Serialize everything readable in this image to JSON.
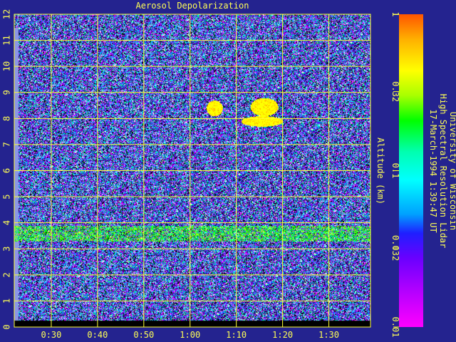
{
  "chart_data": {
    "type": "heatmap",
    "title": "Aerosol Depolarization",
    "ylabel": "Altitude (km)",
    "xlabel": "",
    "x_tick_labels": [
      "0:30",
      "0:40",
      "0:50",
      "1:00",
      "1:10",
      "1:20",
      "1:30"
    ],
    "x_tick_minutes": [
      30,
      40,
      50,
      60,
      70,
      80,
      90
    ],
    "xlim_minutes": [
      22,
      99
    ],
    "y_ticks": [
      0,
      1,
      2,
      3,
      4,
      5,
      6,
      7,
      8,
      9,
      10,
      11,
      12
    ],
    "ylim": [
      0,
      12
    ],
    "grid": true,
    "colorbar": {
      "scale": "log",
      "range": [
        0.01,
        1
      ],
      "tick_labels": [
        "1",
        "0.32",
        "0.1",
        "0.032",
        "0.01"
      ],
      "tick_values": [
        1,
        0.32,
        0.1,
        0.032,
        0.01
      ],
      "side": "right"
    },
    "side_text": [
      "University of Wisconsin",
      "High Spectral Resolution Lidar",
      "17-March-1994  1:39:47 UT"
    ],
    "features": [
      {
        "kind": "aerosol-layer",
        "altitude_km": [
          3.3,
          3.9
        ],
        "x_minutes": [
          22,
          99
        ]
      },
      {
        "kind": "cloud",
        "altitude_km": [
          8.1,
          8.7
        ],
        "x_minutes": [
          63.5,
          67
        ]
      },
      {
        "kind": "cloud",
        "altitude_km": [
          8.1,
          8.8
        ],
        "x_minutes": [
          73,
          79
        ]
      },
      {
        "kind": "cloud",
        "altitude_km": [
          7.7,
          8.1
        ],
        "x_minutes": [
          71,
          80
        ]
      }
    ]
  },
  "colors": {
    "background": "#24238f",
    "grid": "#ffff33",
    "label": "#ffff55",
    "palette": [
      "#ff00ff",
      "#b000ff",
      "#7000ff",
      "#2a2aff",
      "#00b4ff",
      "#00ffff",
      "#00ff80",
      "#00ff00",
      "#b8ff00",
      "#ffff00",
      "#ffb000",
      "#ff5500"
    ]
  }
}
